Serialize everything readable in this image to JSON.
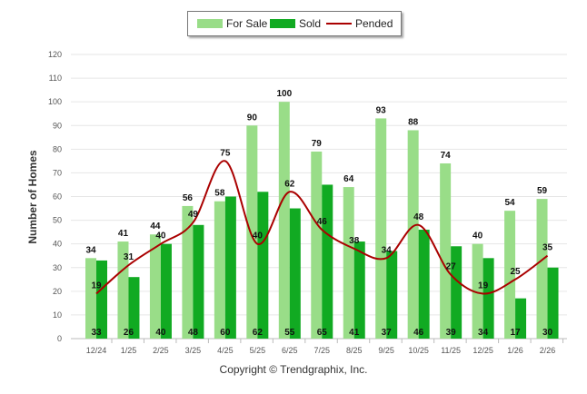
{
  "chart_data": {
    "type": "bar",
    "ylabel": "Number of Homes",
    "xlabel": "",
    "ylim": [
      0,
      120
    ],
    "yticks": [
      0,
      10,
      20,
      30,
      40,
      50,
      60,
      70,
      80,
      90,
      100,
      110,
      120
    ],
    "categories": [
      "12/24",
      "1/25",
      "2/25",
      "3/25",
      "4/25",
      "5/25",
      "6/25",
      "7/25",
      "8/25",
      "9/25",
      "10/25",
      "11/25",
      "12/25",
      "1/26",
      "2/26"
    ],
    "series": [
      {
        "name": "For Sale",
        "kind": "bar",
        "color": "#99dd88",
        "values": [
          34,
          41,
          44,
          56,
          58,
          90,
          100,
          79,
          64,
          93,
          88,
          74,
          40,
          54,
          59
        ]
      },
      {
        "name": "Sold",
        "kind": "bar",
        "color": "#11aa22",
        "values": [
          33,
          26,
          40,
          48,
          60,
          62,
          55,
          65,
          41,
          37,
          46,
          39,
          34,
          17,
          30
        ]
      },
      {
        "name": "Pended",
        "kind": "line",
        "color": "#aa0000",
        "values": [
          19,
          31,
          40,
          49,
          75,
          40,
          62,
          46,
          38,
          34,
          48,
          27,
          19,
          25,
          35
        ]
      }
    ],
    "legend": "top-center",
    "grid": true
  },
  "footer": {
    "copyright": "Copyright © Trendgraphix, Inc."
  }
}
